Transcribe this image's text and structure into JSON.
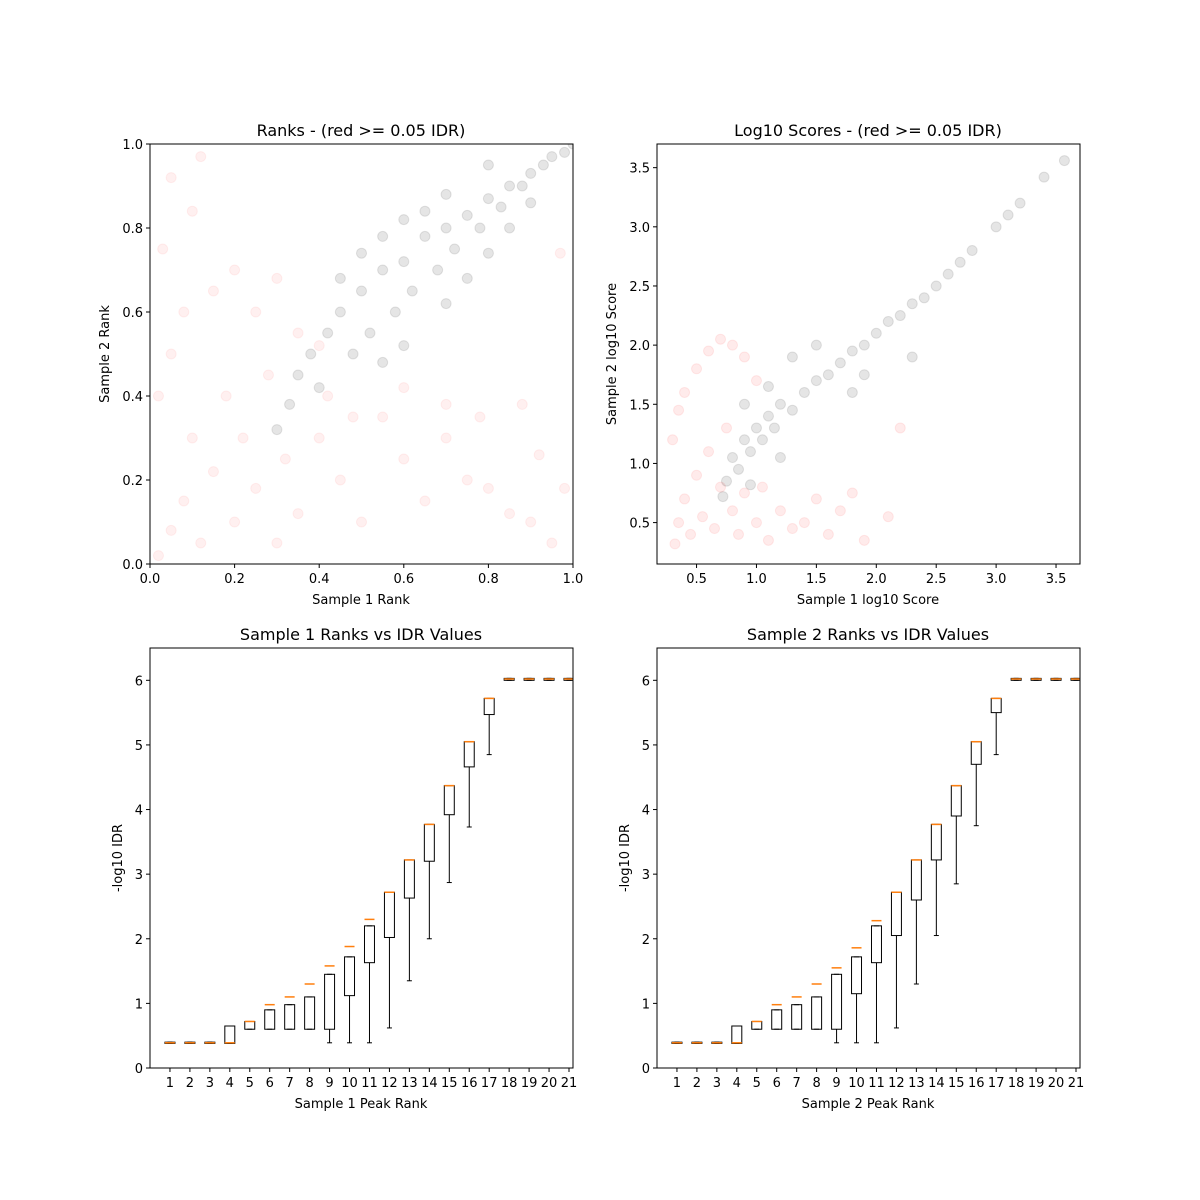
{
  "chart_data": [
    {
      "type": "scatter",
      "title": "Ranks - (red >= 0.05 IDR)",
      "xlabel": "Sample 1 Rank",
      "ylabel": "Sample 2 Rank",
      "xlim": [
        0.0,
        1.0
      ],
      "ylim": [
        0.0,
        1.0
      ],
      "xticks": [
        "0.0",
        "0.2",
        "0.4",
        "0.6",
        "0.8",
        "1.0"
      ],
      "yticks": [
        "0.0",
        "0.2",
        "0.4",
        "0.6",
        "0.8",
        "1.0"
      ],
      "series": [
        {
          "color": "#ff0000",
          "opacity": 0.06,
          "points": [
            [
              0.02,
              0.02
            ],
            [
              0.05,
              0.08
            ],
            [
              0.08,
              0.15
            ],
            [
              0.1,
              0.3
            ],
            [
              0.12,
              0.05
            ],
            [
              0.15,
              0.22
            ],
            [
              0.18,
              0.4
            ],
            [
              0.2,
              0.1
            ],
            [
              0.22,
              0.3
            ],
            [
              0.25,
              0.18
            ],
            [
              0.28,
              0.45
            ],
            [
              0.3,
              0.05
            ],
            [
              0.32,
              0.25
            ],
            [
              0.35,
              0.12
            ],
            [
              0.4,
              0.3
            ],
            [
              0.45,
              0.2
            ],
            [
              0.5,
              0.1
            ],
            [
              0.55,
              0.35
            ],
            [
              0.6,
              0.25
            ],
            [
              0.65,
              0.15
            ],
            [
              0.7,
              0.3
            ],
            [
              0.75,
              0.2
            ],
            [
              0.8,
              0.18
            ],
            [
              0.85,
              0.12
            ],
            [
              0.9,
              0.1
            ],
            [
              0.95,
              0.05
            ],
            [
              0.05,
              0.5
            ],
            [
              0.08,
              0.6
            ],
            [
              0.03,
              0.75
            ],
            [
              0.05,
              0.92
            ],
            [
              0.1,
              0.84
            ],
            [
              0.12,
              0.97
            ],
            [
              0.2,
              0.7
            ],
            [
              0.25,
              0.6
            ],
            [
              0.3,
              0.68
            ],
            [
              0.35,
              0.55
            ],
            [
              0.4,
              0.52
            ],
            [
              0.15,
              0.65
            ],
            [
              0.02,
              0.4
            ],
            [
              0.42,
              0.4
            ],
            [
              0.48,
              0.35
            ],
            [
              0.6,
              0.42
            ],
            [
              0.7,
              0.38
            ],
            [
              0.78,
              0.35
            ],
            [
              0.88,
              0.38
            ],
            [
              0.92,
              0.26
            ],
            [
              0.97,
              0.74
            ],
            [
              0.98,
              0.18
            ]
          ]
        },
        {
          "color": "#000000",
          "opacity": 0.1,
          "points": [
            [
              0.3,
              0.32
            ],
            [
              0.33,
              0.38
            ],
            [
              0.35,
              0.45
            ],
            [
              0.38,
              0.5
            ],
            [
              0.4,
              0.42
            ],
            [
              0.42,
              0.55
            ],
            [
              0.45,
              0.6
            ],
            [
              0.48,
              0.5
            ],
            [
              0.5,
              0.65
            ],
            [
              0.52,
              0.55
            ],
            [
              0.55,
              0.7
            ],
            [
              0.58,
              0.6
            ],
            [
              0.6,
              0.72
            ],
            [
              0.62,
              0.65
            ],
            [
              0.65,
              0.78
            ],
            [
              0.68,
              0.7
            ],
            [
              0.7,
              0.8
            ],
            [
              0.72,
              0.75
            ],
            [
              0.75,
              0.83
            ],
            [
              0.78,
              0.8
            ],
            [
              0.8,
              0.87
            ],
            [
              0.83,
              0.85
            ],
            [
              0.85,
              0.9
            ],
            [
              0.88,
              0.9
            ],
            [
              0.9,
              0.93
            ],
            [
              0.93,
              0.95
            ],
            [
              0.95,
              0.97
            ],
            [
              0.98,
              0.98
            ],
            [
              1.0,
              1.0
            ],
            [
              0.55,
              0.48
            ],
            [
              0.6,
              0.52
            ],
            [
              0.7,
              0.62
            ],
            [
              0.75,
              0.68
            ],
            [
              0.8,
              0.74
            ],
            [
              0.85,
              0.8
            ],
            [
              0.9,
              0.86
            ],
            [
              0.45,
              0.68
            ],
            [
              0.5,
              0.74
            ],
            [
              0.6,
              0.82
            ],
            [
              0.55,
              0.78
            ],
            [
              0.65,
              0.84
            ],
            [
              0.7,
              0.88
            ],
            [
              0.8,
              0.95
            ]
          ]
        }
      ]
    },
    {
      "type": "scatter",
      "title": "Log10 Scores - (red >= 0.05 IDR)",
      "xlabel": "Sample 1 log10 Score",
      "ylabel": "Sample 2 log10 Score",
      "xlim": [
        0.17,
        3.7
      ],
      "ylim": [
        0.15,
        3.7
      ],
      "xticks": [
        0.5,
        1.0,
        1.5,
        2.0,
        2.5,
        3.0,
        3.5
      ],
      "yticks": [
        0.5,
        1.0,
        1.5,
        2.0,
        2.5,
        3.0,
        3.5
      ],
      "series": [
        {
          "color": "#ff0000",
          "opacity": 0.08,
          "points": [
            [
              0.32,
              0.32
            ],
            [
              0.35,
              0.5
            ],
            [
              0.4,
              0.7
            ],
            [
              0.45,
              0.4
            ],
            [
              0.5,
              0.9
            ],
            [
              0.55,
              0.55
            ],
            [
              0.6,
              1.1
            ],
            [
              0.65,
              0.45
            ],
            [
              0.7,
              0.8
            ],
            [
              0.75,
              1.3
            ],
            [
              0.8,
              0.6
            ],
            [
              0.85,
              0.4
            ],
            [
              0.9,
              0.75
            ],
            [
              1.0,
              0.5
            ],
            [
              1.05,
              0.8
            ],
            [
              1.1,
              0.35
            ],
            [
              1.2,
              0.6
            ],
            [
              1.3,
              0.45
            ],
            [
              1.4,
              0.5
            ],
            [
              1.5,
              0.7
            ],
            [
              1.6,
              0.4
            ],
            [
              1.7,
              0.6
            ],
            [
              1.8,
              0.75
            ],
            [
              1.9,
              0.35
            ],
            [
              2.1,
              0.55
            ],
            [
              0.35,
              1.45
            ],
            [
              0.4,
              1.6
            ],
            [
              0.5,
              1.8
            ],
            [
              0.6,
              1.95
            ],
            [
              0.7,
              2.05
            ],
            [
              0.8,
              2.0
            ],
            [
              0.9,
              1.9
            ],
            [
              1.0,
              1.7
            ],
            [
              0.3,
              1.2
            ],
            [
              2.2,
              1.3
            ]
          ]
        },
        {
          "color": "#000000",
          "opacity": 0.1,
          "points": [
            [
              0.72,
              0.72
            ],
            [
              0.75,
              0.85
            ],
            [
              0.8,
              1.05
            ],
            [
              0.85,
              0.95
            ],
            [
              0.9,
              1.2
            ],
            [
              0.95,
              1.1
            ],
            [
              1.0,
              1.3
            ],
            [
              1.05,
              1.2
            ],
            [
              1.1,
              1.4
            ],
            [
              1.15,
              1.3
            ],
            [
              1.2,
              1.5
            ],
            [
              1.3,
              1.45
            ],
            [
              1.4,
              1.6
            ],
            [
              1.5,
              1.7
            ],
            [
              1.6,
              1.75
            ],
            [
              1.7,
              1.85
            ],
            [
              1.8,
              1.95
            ],
            [
              1.9,
              2.0
            ],
            [
              2.0,
              2.1
            ],
            [
              2.1,
              2.2
            ],
            [
              2.2,
              2.25
            ],
            [
              2.3,
              2.35
            ],
            [
              2.4,
              2.4
            ],
            [
              2.5,
              2.5
            ],
            [
              2.6,
              2.6
            ],
            [
              2.7,
              2.7
            ],
            [
              2.8,
              2.8
            ],
            [
              3.0,
              3.0
            ],
            [
              3.1,
              3.1
            ],
            [
              3.2,
              3.2
            ],
            [
              3.4,
              3.42
            ],
            [
              3.57,
              3.56
            ],
            [
              0.9,
              1.5
            ],
            [
              1.1,
              1.65
            ],
            [
              1.3,
              1.9
            ],
            [
              1.5,
              2.0
            ],
            [
              1.8,
              1.6
            ],
            [
              1.9,
              1.75
            ],
            [
              2.3,
              1.9
            ],
            [
              1.2,
              1.05
            ],
            [
              0.95,
              0.82
            ]
          ]
        }
      ]
    },
    {
      "type": "box",
      "title": "Sample 1 Ranks vs IDR Values",
      "xlabel": "Sample 1 Peak Rank",
      "ylabel": "-log10 IDR",
      "xlim": [
        0,
        21.2
      ],
      "ylim": [
        0,
        6.5
      ],
      "xticks": [
        "1",
        "2",
        "3",
        "4",
        "5",
        "6",
        "7",
        "8",
        "9",
        "10",
        "11",
        "12",
        "13",
        "14",
        "15",
        "16",
        "17",
        "18",
        "19",
        "20",
        "21"
      ],
      "yticks": [
        "0",
        "1",
        "2",
        "3",
        "4",
        "5",
        "6"
      ],
      "medians": [
        0.39,
        0.39,
        0.39,
        0.39,
        0.72,
        0.98,
        1.1,
        1.3,
        1.58,
        1.88,
        2.3,
        2.72,
        3.22,
        3.77,
        4.37,
        5.05,
        5.72,
        6.02,
        6.02,
        6.02,
        6.02
      ],
      "boxes": [
        [
          0.38,
          0.4
        ],
        [
          0.38,
          0.4
        ],
        [
          0.38,
          0.4
        ],
        [
          0.38,
          0.65
        ],
        [
          0.6,
          0.72
        ],
        [
          0.6,
          0.9
        ],
        [
          0.6,
          0.98
        ],
        [
          0.6,
          1.1
        ],
        [
          0.6,
          1.45
        ],
        [
          1.12,
          1.72
        ],
        [
          1.63,
          2.2
        ],
        [
          2.02,
          2.72
        ],
        [
          2.63,
          3.22
        ],
        [
          3.2,
          3.77
        ],
        [
          3.92,
          4.37
        ],
        [
          4.66,
          5.05
        ],
        [
          5.47,
          5.72
        ],
        [
          6.0,
          6.03
        ],
        [
          6.0,
          6.03
        ],
        [
          6.0,
          6.03
        ],
        [
          6.0,
          6.03
        ]
      ],
      "whiskers": [
        [
          0.38,
          0.4
        ],
        [
          0.38,
          0.4
        ],
        [
          0.38,
          0.4
        ],
        [
          0.38,
          0.65
        ],
        [
          0.6,
          0.72
        ],
        [
          0.6,
          0.9
        ],
        [
          0.6,
          0.98
        ],
        [
          0.6,
          1.1
        ],
        [
          0.39,
          1.45
        ],
        [
          0.39,
          1.72
        ],
        [
          0.39,
          2.2
        ],
        [
          0.62,
          2.72
        ],
        [
          1.35,
          3.22
        ],
        [
          2.0,
          3.77
        ],
        [
          2.87,
          4.37
        ],
        [
          3.73,
          5.05
        ],
        [
          4.85,
          5.72
        ],
        [
          6.0,
          6.03
        ],
        [
          6.0,
          6.03
        ],
        [
          6.0,
          6.03
        ],
        [
          6.0,
          6.03
        ]
      ]
    },
    {
      "type": "box",
      "title": "Sample 2 Ranks vs IDR Values",
      "xlabel": "Sample 2 Peak Rank",
      "ylabel": "-log10 IDR",
      "xlim": [
        0,
        21.2
      ],
      "ylim": [
        0,
        6.5
      ],
      "xticks": [
        "1",
        "2",
        "3",
        "4",
        "5",
        "6",
        "7",
        "8",
        "9",
        "10",
        "11",
        "12",
        "13",
        "14",
        "15",
        "16",
        "17",
        "18",
        "19",
        "20",
        "21"
      ],
      "yticks": [
        "0",
        "1",
        "2",
        "3",
        "4",
        "5",
        "6"
      ],
      "medians": [
        0.39,
        0.39,
        0.39,
        0.39,
        0.72,
        0.98,
        1.1,
        1.3,
        1.55,
        1.86,
        2.28,
        2.72,
        3.22,
        3.77,
        4.37,
        5.05,
        5.72,
        6.02,
        6.02,
        6.02,
        6.02
      ],
      "boxes": [
        [
          0.38,
          0.4
        ],
        [
          0.38,
          0.4
        ],
        [
          0.38,
          0.4
        ],
        [
          0.38,
          0.65
        ],
        [
          0.6,
          0.72
        ],
        [
          0.6,
          0.9
        ],
        [
          0.6,
          0.98
        ],
        [
          0.6,
          1.1
        ],
        [
          0.6,
          1.45
        ],
        [
          1.15,
          1.72
        ],
        [
          1.63,
          2.2
        ],
        [
          2.05,
          2.72
        ],
        [
          2.6,
          3.22
        ],
        [
          3.22,
          3.77
        ],
        [
          3.9,
          4.37
        ],
        [
          4.7,
          5.05
        ],
        [
          5.5,
          5.72
        ],
        [
          6.0,
          6.03
        ],
        [
          6.0,
          6.03
        ],
        [
          6.0,
          6.03
        ],
        [
          6.0,
          6.03
        ]
      ],
      "whiskers": [
        [
          0.38,
          0.4
        ],
        [
          0.38,
          0.4
        ],
        [
          0.38,
          0.4
        ],
        [
          0.38,
          0.65
        ],
        [
          0.6,
          0.72
        ],
        [
          0.6,
          0.9
        ],
        [
          0.6,
          0.98
        ],
        [
          0.6,
          1.1
        ],
        [
          0.39,
          1.45
        ],
        [
          0.39,
          1.72
        ],
        [
          0.39,
          2.2
        ],
        [
          0.62,
          2.72
        ],
        [
          1.3,
          3.22
        ],
        [
          2.05,
          3.77
        ],
        [
          2.85,
          4.37
        ],
        [
          3.75,
          5.05
        ],
        [
          4.85,
          5.72
        ],
        [
          6.0,
          6.03
        ],
        [
          6.0,
          6.03
        ],
        [
          6.0,
          6.03
        ],
        [
          6.0,
          6.03
        ]
      ]
    }
  ]
}
